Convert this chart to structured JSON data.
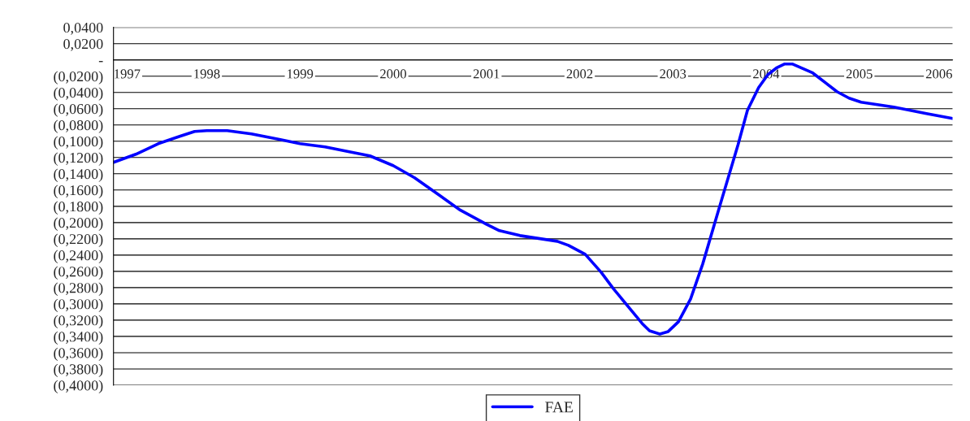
{
  "chart_data": {
    "type": "line",
    "x": [
      1997.0,
      1997.24,
      1997.48,
      1997.71,
      1997.87,
      1998.0,
      1998.22,
      1998.48,
      1998.79,
      1999.0,
      1999.27,
      1999.53,
      1999.75,
      2000.0,
      2000.23,
      2000.49,
      2000.71,
      2001.0,
      2001.14,
      2001.36,
      2001.76,
      2001.88,
      2002.06,
      2002.23,
      2002.36,
      2002.54,
      2002.67,
      2002.75,
      2002.86,
      2002.95,
      2003.06,
      2003.19,
      2003.32,
      2003.5,
      2003.63,
      2003.7,
      2003.8,
      2003.92,
      2004.02,
      2004.11,
      2004.2,
      2004.28,
      2004.5,
      2004.76,
      2004.89,
      2005.02,
      2005.37,
      2005.72,
      2006.0
    ],
    "series": [
      {
        "name": "FAE",
        "color": "#0000ff",
        "values": [
          -0.126,
          -0.116,
          -0.103,
          -0.094,
          -0.088,
          -0.087,
          -0.087,
          -0.091,
          -0.098,
          -0.103,
          -0.107,
          -0.113,
          -0.118,
          -0.13,
          -0.145,
          -0.166,
          -0.184,
          -0.202,
          -0.21,
          -0.216,
          -0.223,
          -0.228,
          -0.239,
          -0.261,
          -0.281,
          -0.306,
          -0.324,
          -0.333,
          -0.337,
          -0.334,
          -0.322,
          -0.294,
          -0.251,
          -0.181,
          -0.131,
          -0.104,
          -0.062,
          -0.034,
          -0.018,
          -0.01,
          -0.005,
          -0.005,
          -0.016,
          -0.039,
          -0.047,
          -0.052,
          -0.058,
          -0.066,
          -0.072
        ]
      }
    ],
    "xlim": [
      1997,
      2006
    ],
    "xticks": [
      1997,
      1998,
      1999,
      2000,
      2001,
      2002,
      2003,
      2004,
      2005,
      2006
    ],
    "ylim": [
      -0.4,
      0.04
    ],
    "yticks": [
      {
        "value": 0.04,
        "label": "0,0400"
      },
      {
        "value": 0.02,
        "label": "0,0200"
      },
      {
        "value": 0,
        "label": "-"
      },
      {
        "value": -0.02,
        "label": "(0,0200)"
      },
      {
        "value": -0.04,
        "label": "(0,0400)"
      },
      {
        "value": -0.06,
        "label": "(0,0600)"
      },
      {
        "value": -0.08,
        "label": "(0,0800)"
      },
      {
        "value": -0.1,
        "label": "(0,1000)"
      },
      {
        "value": -0.12,
        "label": "(0,1200)"
      },
      {
        "value": -0.14,
        "label": "(0,1400)"
      },
      {
        "value": -0.16,
        "label": "(0,1600)"
      },
      {
        "value": -0.18,
        "label": "(0,1800)"
      },
      {
        "value": -0.2,
        "label": "(0,2000)"
      },
      {
        "value": -0.22,
        "label": "(0,2200)"
      },
      {
        "value": -0.24,
        "label": "(0,2400)"
      },
      {
        "value": -0.26,
        "label": "(0,2600)"
      },
      {
        "value": -0.28,
        "label": "(0,2800)"
      },
      {
        "value": -0.3,
        "label": "(0,3000)"
      },
      {
        "value": -0.32,
        "label": "(0,3200)"
      },
      {
        "value": -0.34,
        "label": "(0,3400)"
      },
      {
        "value": -0.36,
        "label": "(0,3600)"
      },
      {
        "value": -0.38,
        "label": "(0,3800)"
      },
      {
        "value": -0.4,
        "label": "(0,4000)"
      }
    ],
    "grid": "y",
    "legend": "bottom"
  }
}
